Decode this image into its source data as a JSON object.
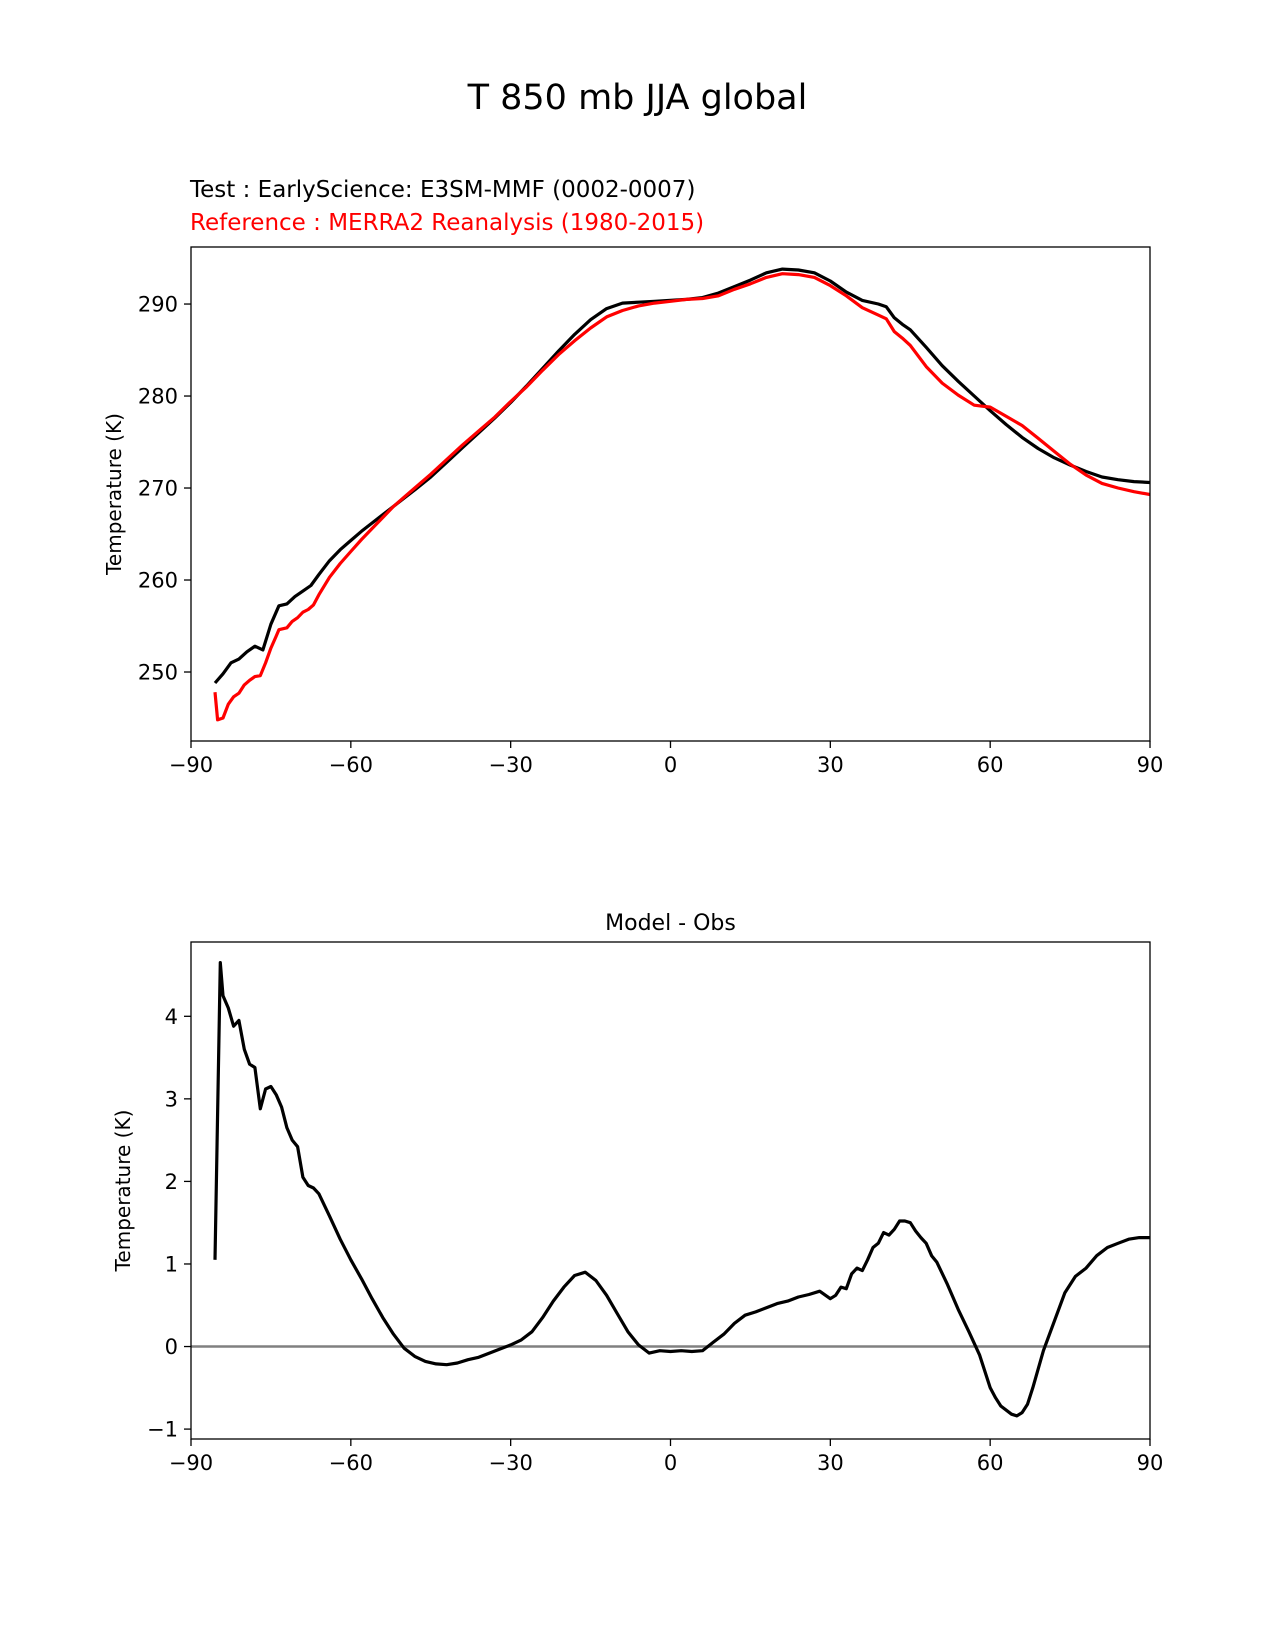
{
  "figure": {
    "title": "T 850 mb JJA global",
    "test_label": "Test : EarlyScience: E3SM-MMF (0002-0007)",
    "reference_label": "Reference : MERRA2 Reanalysis (1980-2015)"
  },
  "colors": {
    "test": "#000000",
    "reference": "#ff0000",
    "zero_line": "#808080"
  },
  "chart_data": [
    {
      "type": "line",
      "title": "",
      "xlabel": "",
      "ylabel": "Temperature (K)",
      "xlim": [
        -90,
        90
      ],
      "ylim": [
        242.5,
        296.2
      ],
      "xticks": [
        -90,
        -60,
        -30,
        0,
        30,
        60,
        90
      ],
      "xtick_labels": [
        "−90",
        "−60",
        "−30",
        "0",
        "30",
        "60",
        "90"
      ],
      "yticks": [
        250,
        260,
        270,
        280,
        290
      ],
      "ytick_labels": [
        "250",
        "260",
        "270",
        "280",
        "290"
      ],
      "series": [
        {
          "name": "Test : EarlyScience: E3SM-MMF (0002-0007)",
          "color": "#000000",
          "x": [
            -85.5,
            -84,
            -82.5,
            -81,
            -79.5,
            -78,
            -76.5,
            -75,
            -73.5,
            -72,
            -70.5,
            -69,
            -67.5,
            -66,
            -64,
            -62,
            -60,
            -58,
            -56,
            -54,
            -52,
            -50,
            -48,
            -45,
            -42,
            -39,
            -36,
            -33,
            -30,
            -27,
            -24,
            -21,
            -18,
            -15,
            -12,
            -9,
            -6,
            -3,
            0,
            3,
            6,
            9,
            12,
            15,
            18,
            21,
            24,
            27,
            30,
            33,
            36,
            39,
            40.5,
            42,
            43.5,
            45,
            48,
            51,
            54,
            57,
            60,
            63,
            66,
            69,
            72,
            75,
            78,
            81,
            84,
            87,
            90
          ],
          "y": [
            248.8,
            249.8,
            251.0,
            251.4,
            252.2,
            252.8,
            252.4,
            255.2,
            257.2,
            257.4,
            258.2,
            258.8,
            259.4,
            260.6,
            262.1,
            263.3,
            264.3,
            265.3,
            266.2,
            267.1,
            268.0,
            268.9,
            269.8,
            271.2,
            272.8,
            274.4,
            276.0,
            277.6,
            279.3,
            281.1,
            283.0,
            284.9,
            286.7,
            288.3,
            289.5,
            290.1,
            290.2,
            290.3,
            290.4,
            290.5,
            290.7,
            291.2,
            291.9,
            292.6,
            293.4,
            293.8,
            293.7,
            293.4,
            292.5,
            291.3,
            290.4,
            290.0,
            289.7,
            288.5,
            287.8,
            287.2,
            285.3,
            283.3,
            281.6,
            280.0,
            278.4,
            276.9,
            275.5,
            274.3,
            273.3,
            272.5,
            271.8,
            271.2,
            270.9,
            270.7,
            270.6
          ]
        },
        {
          "name": "Reference : MERRA2 Reanalysis (1980-2015)",
          "color": "#ff0000",
          "x": [
            -85.5,
            -85,
            -84,
            -83,
            -82,
            -81,
            -80,
            -79,
            -78,
            -77,
            -76,
            -75,
            -74,
            -73.5,
            -72,
            -71,
            -70,
            -69,
            -68,
            -67,
            -66,
            -64,
            -62,
            -60,
            -58,
            -56,
            -54,
            -52,
            -50,
            -48,
            -45,
            -42,
            -39,
            -36,
            -33,
            -30,
            -27,
            -24,
            -21,
            -18,
            -15,
            -12,
            -9,
            -6,
            -3,
            0,
            3,
            6,
            9,
            12,
            15,
            18,
            21,
            24,
            27,
            30,
            33,
            36,
            39,
            40.5,
            42,
            43.5,
            45,
            48,
            51,
            54,
            57,
            60,
            63,
            66,
            69,
            72,
            75,
            78,
            81,
            84,
            87,
            90
          ],
          "y": [
            247.8,
            244.8,
            245.0,
            246.5,
            247.3,
            247.7,
            248.6,
            249.1,
            249.5,
            249.6,
            251.0,
            252.6,
            253.9,
            254.6,
            254.8,
            255.5,
            255.9,
            256.5,
            256.8,
            257.3,
            258.4,
            260.3,
            261.8,
            263.1,
            264.4,
            265.6,
            266.8,
            268.0,
            269.0,
            270.0,
            271.5,
            273.1,
            274.7,
            276.2,
            277.7,
            279.4,
            281.0,
            282.8,
            284.5,
            286.0,
            287.4,
            288.6,
            289.3,
            289.8,
            290.1,
            290.3,
            290.5,
            290.6,
            290.9,
            291.6,
            292.2,
            292.9,
            293.3,
            293.2,
            292.9,
            292.0,
            290.9,
            289.6,
            288.8,
            288.4,
            287.0,
            286.3,
            285.5,
            283.2,
            281.4,
            280.1,
            279.0,
            278.8,
            277.8,
            276.8,
            275.4,
            274.0,
            272.6,
            271.4,
            270.5,
            270.0,
            269.6,
            269.3
          ]
        }
      ]
    },
    {
      "type": "line",
      "title": "Model - Obs",
      "xlabel": "",
      "ylabel": "Temperature (K)",
      "xlim": [
        -90,
        90
      ],
      "ylim": [
        -1.12,
        4.9
      ],
      "xticks": [
        -90,
        -60,
        -30,
        0,
        30,
        60,
        90
      ],
      "xtick_labels": [
        "−90",
        "−60",
        "−30",
        "0",
        "30",
        "60",
        "90"
      ],
      "yticks": [
        -1,
        0,
        1,
        2,
        3,
        4
      ],
      "ytick_labels": [
        "−1",
        "0",
        "1",
        "2",
        "3",
        "4"
      ],
      "zero_line": 0,
      "series": [
        {
          "name": "Model - Obs",
          "color": "#000000",
          "x": [
            -85.5,
            -84.5,
            -84,
            -83,
            -82,
            -81,
            -80,
            -79,
            -78,
            -77,
            -76,
            -75,
            -74,
            -73,
            -72,
            -71,
            -70,
            -69,
            -68,
            -67,
            -66,
            -64,
            -62,
            -60,
            -58,
            -56,
            -54,
            -52,
            -50,
            -48,
            -46,
            -44,
            -42,
            -40,
            -38,
            -36,
            -34,
            -32,
            -30,
            -28,
            -26,
            -24,
            -22,
            -20,
            -18,
            -16,
            -14,
            -12,
            -10,
            -8,
            -6,
            -4,
            -2,
            0,
            2,
            4,
            6,
            8,
            10,
            12,
            14,
            16,
            18,
            20,
            22,
            24,
            26,
            28,
            30,
            31,
            32,
            33,
            34,
            35,
            36,
            37,
            38,
            39,
            40,
            41,
            42,
            43,
            44,
            45,
            46,
            47,
            48,
            49,
            50,
            52,
            54,
            56,
            58,
            60,
            61,
            62,
            64,
            65,
            66,
            67,
            68,
            70,
            72,
            74,
            76,
            78,
            80,
            82,
            84,
            86,
            88,
            90
          ],
          "y": [
            1.05,
            4.65,
            4.25,
            4.1,
            3.88,
            3.95,
            3.6,
            3.42,
            3.38,
            2.88,
            3.12,
            3.15,
            3.05,
            2.9,
            2.65,
            2.5,
            2.42,
            2.05,
            1.95,
            1.92,
            1.85,
            1.58,
            1.3,
            1.05,
            0.82,
            0.58,
            0.35,
            0.15,
            -0.02,
            -0.12,
            -0.18,
            -0.21,
            -0.22,
            -0.2,
            -0.16,
            -0.13,
            -0.08,
            -0.03,
            0.02,
            0.08,
            0.18,
            0.35,
            0.55,
            0.72,
            0.86,
            0.9,
            0.8,
            0.62,
            0.4,
            0.18,
            0.02,
            -0.08,
            -0.05,
            -0.06,
            -0.05,
            -0.06,
            -0.05,
            0.05,
            0.15,
            0.28,
            0.38,
            0.42,
            0.47,
            0.52,
            0.55,
            0.6,
            0.63,
            0.67,
            0.58,
            0.62,
            0.72,
            0.7,
            0.88,
            0.95,
            0.92,
            1.05,
            1.2,
            1.25,
            1.38,
            1.35,
            1.42,
            1.52,
            1.52,
            1.5,
            1.4,
            1.32,
            1.25,
            1.1,
            1.02,
            0.75,
            0.45,
            0.18,
            -0.1,
            -0.5,
            -0.62,
            -0.72,
            -0.82,
            -0.84,
            -0.8,
            -0.7,
            -0.5,
            -0.05,
            0.3,
            0.65,
            0.85,
            0.95,
            1.1,
            1.2,
            1.25,
            1.3,
            1.32,
            1.32
          ]
        }
      ]
    }
  ]
}
